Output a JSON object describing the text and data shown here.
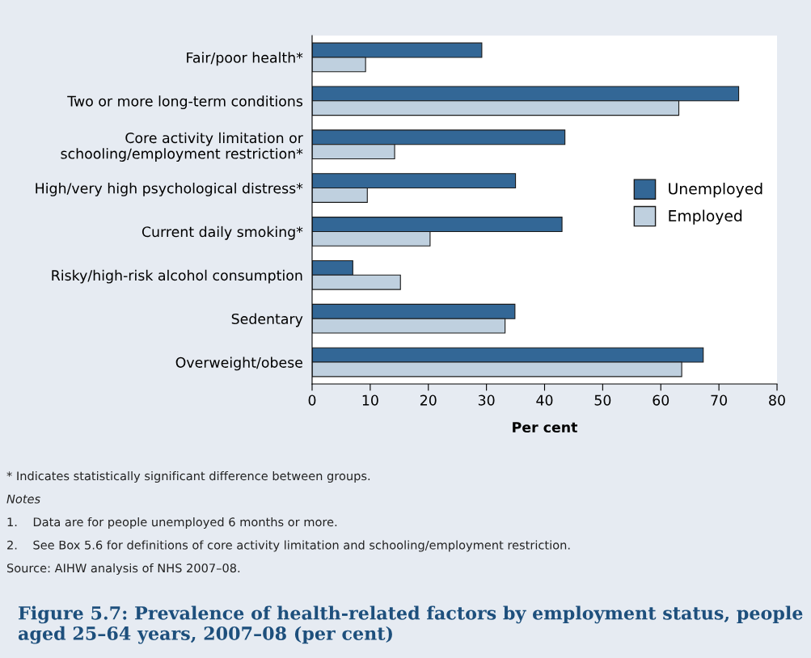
{
  "chart_data": {
    "type": "bar",
    "orientation": "horizontal",
    "title": "Figure 5.7: Prevalence of health-related factors by employment status, people aged 25–64 years, 2007–08 (per cent)",
    "xlabel": "Per cent",
    "categories": [
      "Fair/poor health*",
      "Two or more long-term conditions",
      "Core activity limitation or\nschooling/employment restriction*",
      "High/very high psychological distress*",
      "Current daily smoking*",
      "Risky/high-risk alcohol consumption",
      "Sedentary",
      "Overweight/obese"
    ],
    "series": [
      {
        "name": "Unemployed",
        "color": "#336796",
        "values": [
          29.2,
          73.4,
          43.5,
          35.0,
          43.0,
          7.0,
          34.9,
          67.3
        ]
      },
      {
        "name": "Employed",
        "color": "#bfd0df",
        "values": [
          9.2,
          63.1,
          14.2,
          9.5,
          20.3,
          15.2,
          33.2,
          63.6
        ]
      }
    ],
    "xlim": [
      0,
      80
    ],
    "xticks": [
      0,
      10,
      20,
      30,
      40,
      50,
      60,
      70,
      80
    ],
    "grid": false,
    "legend": "right",
    "annotations": [
      "* Indicates statistically significant difference between groups.",
      "Notes",
      "1.    Data are for people unemployed 6 months or more.",
      "2.    See Box 5.6 for definitions of core activity limitation and schooling/employment restriction.",
      "Source: AIHW analysis of NHS 2007–08."
    ]
  }
}
